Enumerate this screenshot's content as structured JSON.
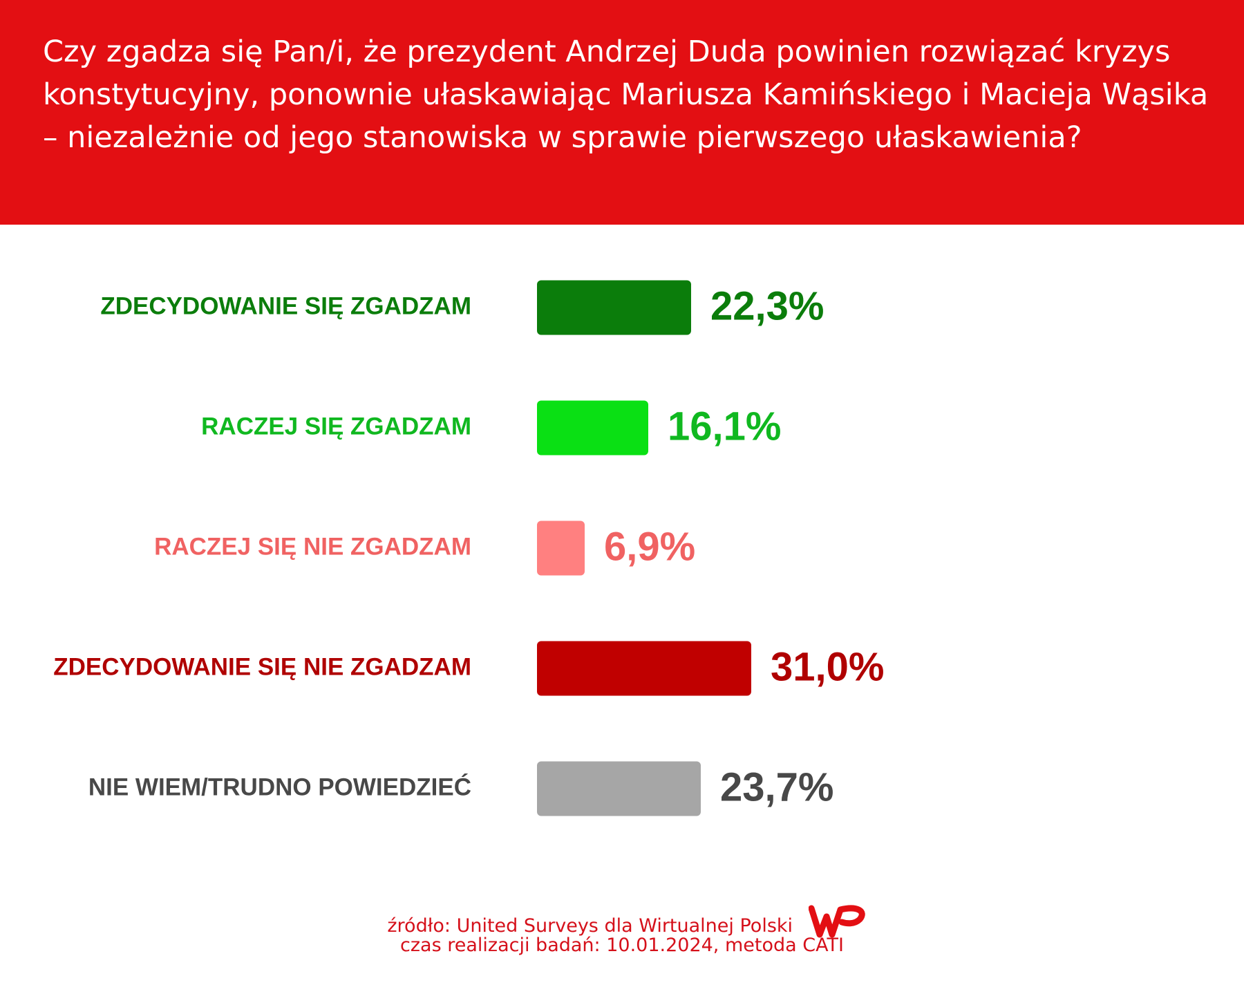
{
  "chart_data": {
    "type": "hbar",
    "title": "Czy zgadza się Pan/i, że prezydent Andrzej Duda powinien rozwiązać kryzys konstytucyjny, ponownie ułaskawiając Mariusza Kamińskiego i Macieja Wąsika – niezależnie od jego stanowiska w sprawie pierwszego ułaskawienia?",
    "categories": [
      "ZDECYDOWANIE SIĘ ZGADZAM",
      "RACZEJ SIĘ ZGADZAM",
      "RACZEJ SIĘ NIE ZGADZAM",
      "ZDECYDOWANIE SIĘ NIE ZGADZAM",
      "NIE WIEM/TRUDNO POWIEDZIEĆ"
    ],
    "values": [
      22.3,
      16.1,
      6.9,
      31.0,
      23.7
    ],
    "value_labels": [
      "22,3%",
      "16,1%",
      "6,9%",
      "31,0%",
      "23,7%"
    ],
    "colors": [
      "#0b7d0b",
      "#0ae014",
      "#ff8080",
      "#c00000",
      "#a6a6a6"
    ],
    "label_colors": [
      "#0b7d0b",
      "#10b820",
      "#f06262",
      "#b00000",
      "#484848"
    ],
    "source": "źródło: United Surveys dla Wirtualnej Polski",
    "note": "czas realizacji badań: 10.01.2024, metoda CATI"
  }
}
